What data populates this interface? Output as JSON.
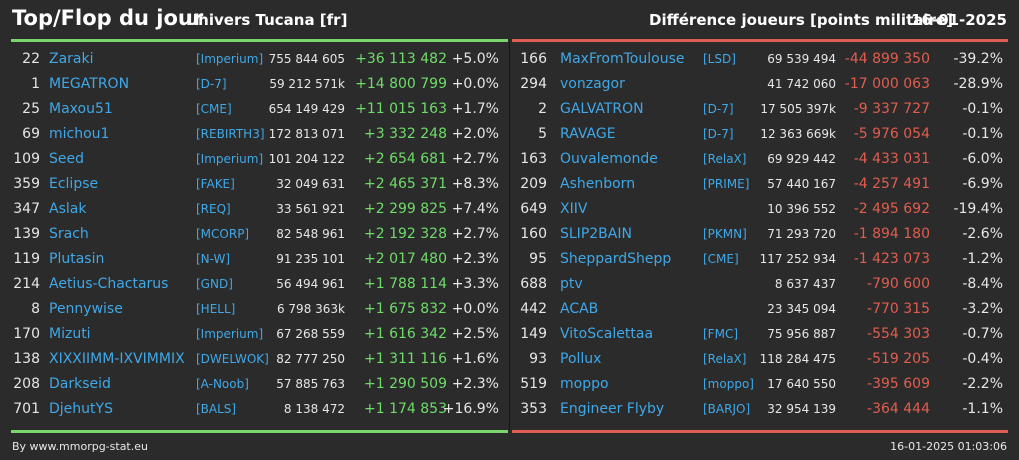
{
  "header": {
    "title": "Top/Flop du jour",
    "universe": "Univers Tucana [fr]",
    "metric": "Différence joueurs [points militaire]",
    "date": "16-01-2025"
  },
  "colors": {
    "background": "#2b2b2b",
    "gain": "#6fdc6a",
    "loss": "#e05d4f",
    "link": "#3fa8e8"
  },
  "top": [
    {
      "rank": "22",
      "name": "Zaraki",
      "alliance": "[Imperium]",
      "points": "755 844 605",
      "diff": "+36 113 482",
      "pct": "+5.0%"
    },
    {
      "rank": "1",
      "name": "MEGATRON",
      "alliance": "[D-7]",
      "points": "59 212 571k",
      "diff": "+14 800 799",
      "pct": "+0.0%"
    },
    {
      "rank": "25",
      "name": "Maxou51",
      "alliance": "[CME]",
      "points": "654 149 429",
      "diff": "+11 015 163",
      "pct": "+1.7%"
    },
    {
      "rank": "69",
      "name": "michou1",
      "alliance": "[REBIRTH3]",
      "points": "172 813 071",
      "diff": "+3 332 248",
      "pct": "+2.0%"
    },
    {
      "rank": "109",
      "name": "Seed",
      "alliance": "[Imperium]",
      "points": "101 204 122",
      "diff": "+2 654 681",
      "pct": "+2.7%"
    },
    {
      "rank": "359",
      "name": "Eclipse",
      "alliance": "[FAKE]",
      "points": "32 049 631",
      "diff": "+2 465 371",
      "pct": "+8.3%"
    },
    {
      "rank": "347",
      "name": "Aslak",
      "alliance": "[REQ]",
      "points": "33 561 921",
      "diff": "+2 299 825",
      "pct": "+7.4%"
    },
    {
      "rank": "139",
      "name": "Srach",
      "alliance": "[MCORP]",
      "points": "82 548 961",
      "diff": "+2 192 328",
      "pct": "+2.7%"
    },
    {
      "rank": "119",
      "name": "Plutasin",
      "alliance": "[N-W]",
      "points": "91 235 101",
      "diff": "+2 017 480",
      "pct": "+2.3%"
    },
    {
      "rank": "214",
      "name": "Aetius-Chactarus",
      "alliance": "[GND]",
      "points": "56 494 961",
      "diff": "+1 788 114",
      "pct": "+3.3%"
    },
    {
      "rank": "8",
      "name": "Pennywise",
      "alliance": "[HELL]",
      "points": "6 798 363k",
      "diff": "+1 675 832",
      "pct": "+0.0%"
    },
    {
      "rank": "170",
      "name": "Mizuti",
      "alliance": "[Imperium]",
      "points": "67 268 559",
      "diff": "+1 616 342",
      "pct": "+2.5%"
    },
    {
      "rank": "138",
      "name": "XIXXIIMM-IXVIMMIX",
      "alliance": "[DWELWOK]",
      "points": "82 777 250",
      "diff": "+1 311 116",
      "pct": "+1.6%"
    },
    {
      "rank": "208",
      "name": "Darkseid",
      "alliance": "[A-Noob]",
      "points": "57 885 763",
      "diff": "+1 290 509",
      "pct": "+2.3%"
    },
    {
      "rank": "701",
      "name": "DjehutYS",
      "alliance": "[BALS]",
      "points": "8 138 472",
      "diff": "+1 174 853",
      "pct": "+16.9%"
    }
  ],
  "flop": [
    {
      "rank": "166",
      "name": "MaxFromToulouse",
      "alliance": "[LSD]",
      "points": "69 539 494",
      "diff": "-44 899 350",
      "pct": "-39.2%"
    },
    {
      "rank": "294",
      "name": "vonzagor",
      "alliance": "",
      "points": "41 742 060",
      "diff": "-17 000 063",
      "pct": "-28.9%"
    },
    {
      "rank": "2",
      "name": "GALVATRON",
      "alliance": "[D-7]",
      "points": "17 505 397k",
      "diff": "-9 337 727",
      "pct": "-0.1%"
    },
    {
      "rank": "5",
      "name": "RAVAGE",
      "alliance": "[D-7]",
      "points": "12 363 669k",
      "diff": "-5 976 054",
      "pct": "-0.1%"
    },
    {
      "rank": "163",
      "name": "Ouvalemonde",
      "alliance": "[RelaX]",
      "points": "69 929 442",
      "diff": "-4 433 031",
      "pct": "-6.0%"
    },
    {
      "rank": "209",
      "name": "Ashenborn",
      "alliance": "[PRIME]",
      "points": "57 440 167",
      "diff": "-4 257 491",
      "pct": "-6.9%"
    },
    {
      "rank": "649",
      "name": "XIIV",
      "alliance": "",
      "points": "10 396 552",
      "diff": "-2 495 692",
      "pct": "-19.4%"
    },
    {
      "rank": "160",
      "name": "SLIP2BAIN",
      "alliance": "[PKMN]",
      "points": "71 293 720",
      "diff": "-1 894 180",
      "pct": "-2.6%"
    },
    {
      "rank": "95",
      "name": "SheppardShepp",
      "alliance": "[CME]",
      "points": "117 252 934",
      "diff": "-1 423 073",
      "pct": "-1.2%"
    },
    {
      "rank": "688",
      "name": "ptv",
      "alliance": "",
      "points": "8 637 437",
      "diff": "-790 600",
      "pct": "-8.4%"
    },
    {
      "rank": "442",
      "name": "ACAB",
      "alliance": "",
      "points": "23 345 094",
      "diff": "-770 315",
      "pct": "-3.2%"
    },
    {
      "rank": "149",
      "name": "VitoScalettaa",
      "alliance": "[FMC]",
      "points": "75 956 887",
      "diff": "-554 303",
      "pct": "-0.7%"
    },
    {
      "rank": "93",
      "name": "Pollux",
      "alliance": "[RelaX]",
      "points": "118 284 475",
      "diff": "-519 205",
      "pct": "-0.4%"
    },
    {
      "rank": "519",
      "name": "moppo",
      "alliance": "[moppo]",
      "points": "17 640 550",
      "diff": "-395 609",
      "pct": "-2.2%"
    },
    {
      "rank": "353",
      "name": "Engineer Flyby",
      "alliance": "[BARJO]",
      "points": "32 954 139",
      "diff": "-364 444",
      "pct": "-1.1%"
    }
  ],
  "footer": {
    "source": "By www.mmorpg-stat.eu",
    "timestamp": "16-01-2025 01:03:06"
  }
}
